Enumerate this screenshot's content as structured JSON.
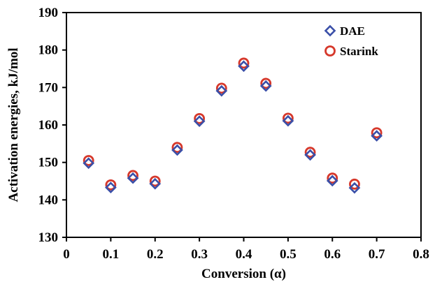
{
  "chart_data": {
    "type": "scatter",
    "title": "",
    "xlabel": "Conversion (α)",
    "ylabel": "Activation energies, kJ/mol",
    "xlim": [
      0,
      0.8
    ],
    "ylim": [
      130,
      190
    ],
    "xticks": [
      0,
      0.1,
      0.2,
      0.3,
      0.4,
      0.5,
      0.6,
      0.7,
      0.8
    ],
    "xtick_labels": [
      "0",
      "0.1",
      "0.2",
      "0.3",
      "0.4",
      "0.5",
      "0.6",
      "0.7",
      "0.8"
    ],
    "yticks": [
      130,
      140,
      150,
      160,
      170,
      180,
      190
    ],
    "ytick_labels": [
      "130",
      "140",
      "150",
      "160",
      "170",
      "180",
      "190"
    ],
    "grid": false,
    "legend_position": "top-right",
    "series": [
      {
        "name": "DAE",
        "marker": "diamond",
        "color": "#3a4fa8",
        "x": [
          0.05,
          0.1,
          0.15,
          0.2,
          0.25,
          0.3,
          0.35,
          0.4,
          0.45,
          0.5,
          0.55,
          0.6,
          0.65,
          0.7
        ],
        "y": [
          149.8,
          143.3,
          145.8,
          144.3,
          153.3,
          161.0,
          169.1,
          175.7,
          170.4,
          161.1,
          152.0,
          145.1,
          143.2,
          157.1
        ]
      },
      {
        "name": "Starink",
        "marker": "circle",
        "color": "#d6382b",
        "x": [
          0.05,
          0.1,
          0.15,
          0.2,
          0.25,
          0.3,
          0.35,
          0.4,
          0.45,
          0.5,
          0.55,
          0.6,
          0.65,
          0.7
        ],
        "y": [
          150.5,
          144.0,
          146.5,
          145.0,
          154.0,
          161.7,
          169.8,
          176.5,
          171.1,
          161.8,
          152.7,
          145.8,
          144.2,
          157.9
        ]
      }
    ]
  }
}
